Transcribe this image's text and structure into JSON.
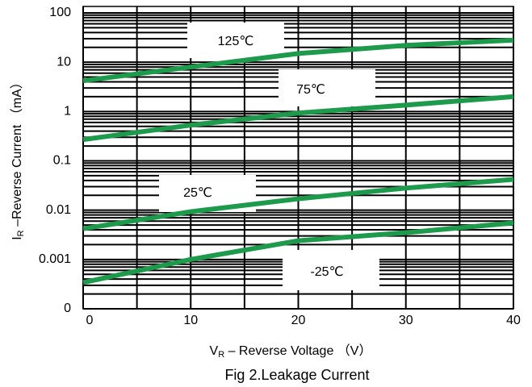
{
  "chart_data": {
    "type": "line",
    "title": "Fig 2.Leakage Current",
    "x_label": {
      "main": "V",
      "sub": "R",
      "rest": " – Reverse Voltage （V）"
    },
    "y_label": {
      "main": "I",
      "sub": "R",
      "rest": " –Reverse Current （mA）"
    },
    "y_scale": "log",
    "grid": true,
    "minor_grid": true,
    "x": [
      0,
      10,
      20,
      30,
      40
    ],
    "xlim": [
      0,
      40
    ],
    "xticks": [
      0,
      10,
      20,
      30,
      40
    ],
    "ylim": [
      0.0001,
      135
    ],
    "yticks": [
      {
        "value": 0.0001,
        "label": "0"
      },
      0.001,
      0.01,
      0.1,
      1,
      10,
      100
    ],
    "series": [
      {
        "name": "125℃",
        "color": "#1e9a4c",
        "values": [
          4.2,
          8,
          15,
          22,
          28
        ]
      },
      {
        "name": "75℃",
        "color": "#1e9a4c",
        "values": [
          0.27,
          0.53,
          0.93,
          1.35,
          2.0
        ]
      },
      {
        "name": "25℃",
        "color": "#1e9a4c",
        "values": [
          0.0042,
          0.0093,
          0.017,
          0.028,
          0.042
        ]
      },
      {
        "name": "-25℃",
        "color": "#1e9a4c",
        "values": [
          0.00034,
          0.001,
          0.0024,
          0.0035,
          0.0055
        ]
      }
    ]
  }
}
